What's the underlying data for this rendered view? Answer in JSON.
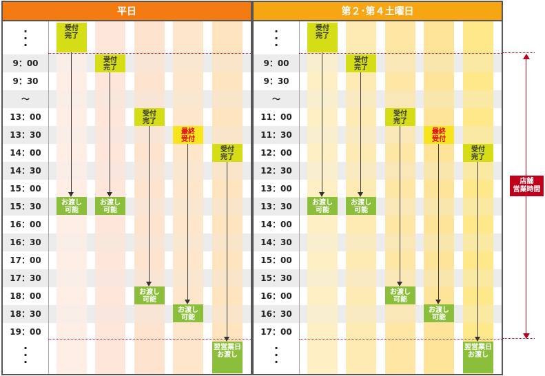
{
  "weekday": {
    "title": "平日",
    "times": [
      "9：00",
      "9：30",
      "〜",
      "13：00",
      "13：30",
      "14：00",
      "14：30",
      "15：00",
      "15：30",
      "16：00",
      "16：30",
      "17：00",
      "17：30",
      "18：00",
      "18：30",
      "19：00"
    ],
    "badges": {
      "accept_done": "受付\n完了",
      "last_accept": "最終\n受付",
      "handover": "お渡し\n可能",
      "next_day": "翌営業日\nお渡し"
    }
  },
  "saturday": {
    "title": "第２･第４土曜日",
    "times": [
      "9：00",
      "9：30",
      "〜",
      "11：00",
      "11：30",
      "12：00",
      "12：30",
      "13：00",
      "13：30",
      "14：00",
      "14：30",
      "15：00",
      "15：30",
      "16：00",
      "16：30",
      "17：00"
    ]
  },
  "vertical_dots": "⋮",
  "store_hours_label": "店舗\n営業時間",
  "colors": {
    "weekday_header": "#f47a12",
    "saturday_header": "#f7a512",
    "accept_badge": "#d4dd16",
    "handover_badge": "#8bbf3b",
    "last_accept_text": "#e2001a",
    "store_hours": "#c0001a"
  }
}
